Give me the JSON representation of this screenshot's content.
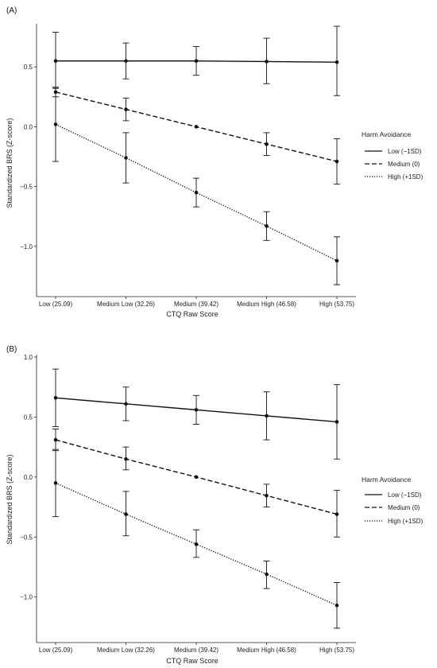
{
  "chart_data": [
    {
      "type": "line",
      "panel_label": "(A)",
      "categories": [
        "Low (25.09)",
        "Medium Low (32.26)",
        "Medium (39.42)",
        "Medium High (46.58)",
        "High (53.75)"
      ],
      "xlabel": "CTQ Raw Score",
      "ylabel": "Standardized BRS (Z-score)",
      "ylim": [
        -1.42,
        0.86
      ],
      "yticks": [
        -1.0,
        -0.5,
        0.0,
        0.5
      ],
      "ytick_labels": [
        "−1.0",
        "−0.5",
        "0.0",
        "0.5"
      ],
      "legend": {
        "title": "Harm Avoidance",
        "placement": "right"
      },
      "series": [
        {
          "name": "Low (−1SD)",
          "style": "solid",
          "values": [
            0.55,
            0.55,
            0.55,
            0.545,
            0.54
          ],
          "lower": [
            0.32,
            0.4,
            0.43,
            0.36,
            0.26
          ],
          "upper": [
            0.79,
            0.7,
            0.67,
            0.74,
            0.84
          ]
        },
        {
          "name": "Medium (0)",
          "style": "dashed",
          "values": [
            0.29,
            0.145,
            0.0,
            -0.145,
            -0.29
          ],
          "lower": [
            0.25,
            0.05,
            0.0,
            -0.24,
            -0.48
          ],
          "upper": [
            0.33,
            0.24,
            0.0,
            -0.05,
            -0.1
          ]
        },
        {
          "name": "High (+1SD)",
          "style": "dotted",
          "values": [
            0.02,
            -0.26,
            -0.55,
            -0.83,
            -1.12
          ],
          "lower": [
            -0.29,
            -0.47,
            -0.67,
            -0.95,
            -1.32
          ],
          "upper": [
            0.33,
            -0.05,
            -0.43,
            -0.71,
            -0.92
          ]
        }
      ]
    },
    {
      "type": "line",
      "panel_label": "(B)",
      "categories": [
        "Low (25.09)",
        "Medium Low (32.26)",
        "Medium (39.42)",
        "Medium High (46.58)",
        "High (53.75)"
      ],
      "xlabel": "CTQ Raw Score",
      "ylabel": "Standardized BRS (Z-score)",
      "ylim": [
        -1.38,
        1.02
      ],
      "yticks": [
        -1.0,
        -0.5,
        0.0,
        0.5,
        1.0
      ],
      "ytick_labels": [
        "−1.0",
        "−0.5",
        "0.0",
        "0.5",
        "1.0"
      ],
      "legend": {
        "title": "Harm Avoidance",
        "placement": "right"
      },
      "series": [
        {
          "name": "Low (−1SD)",
          "style": "solid",
          "values": [
            0.66,
            0.61,
            0.56,
            0.51,
            0.46
          ],
          "lower": [
            0.42,
            0.47,
            0.44,
            0.31,
            0.15
          ],
          "upper": [
            0.9,
            0.75,
            0.68,
            0.71,
            0.77
          ]
        },
        {
          "name": "Medium (0)",
          "style": "dashed",
          "values": [
            0.31,
            0.15,
            0.0,
            -0.155,
            -0.31
          ],
          "lower": [
            0.22,
            0.06,
            0.0,
            -0.25,
            -0.5
          ],
          "upper": [
            0.4,
            0.25,
            0.0,
            -0.06,
            -0.11
          ]
        },
        {
          "name": "High (+1SD)",
          "style": "dotted",
          "values": [
            -0.05,
            -0.31,
            -0.56,
            -0.81,
            -1.07
          ],
          "lower": [
            -0.33,
            -0.49,
            -0.67,
            -0.93,
            -1.26
          ],
          "upper": [
            0.23,
            -0.12,
            -0.44,
            -0.7,
            -0.88
          ]
        }
      ]
    }
  ]
}
